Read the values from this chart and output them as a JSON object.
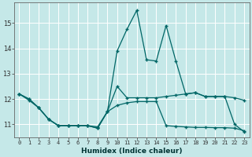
{
  "xlabel": "Humidex (Indice chaleur)",
  "bg_color": "#c5e8e8",
  "grid_color": "#ffffff",
  "line_color": "#006666",
  "xlim": [
    -0.5,
    23.5
  ],
  "ylim": [
    10.5,
    15.8
  ],
  "yticks": [
    11,
    12,
    13,
    14,
    15
  ],
  "xticks": [
    0,
    1,
    2,
    3,
    4,
    5,
    6,
    7,
    8,
    9,
    10,
    11,
    12,
    13,
    14,
    15,
    16,
    17,
    18,
    19,
    20,
    21,
    22,
    23
  ],
  "line1_x": [
    0,
    1,
    2,
    3,
    4,
    5,
    6,
    7,
    8,
    9,
    10,
    11,
    12,
    13,
    14,
    15,
    16,
    17,
    18,
    19,
    20,
    21,
    22,
    23
  ],
  "line1_y": [
    12.2,
    11.95,
    11.65,
    11.2,
    10.95,
    10.95,
    10.95,
    10.95,
    10.85,
    11.5,
    13.9,
    14.75,
    15.5,
    13.55,
    13.5,
    14.9,
    13.5,
    12.2,
    12.25,
    12.1,
    12.1,
    12.1,
    11.0,
    10.7
  ],
  "line2_x": [
    0,
    1,
    2,
    3,
    4,
    5,
    6,
    7,
    8,
    9,
    10,
    11,
    12,
    13,
    14,
    15,
    16,
    17,
    18,
    19,
    20,
    21,
    22,
    23
  ],
  "line2_y": [
    12.2,
    12.0,
    11.65,
    11.2,
    10.95,
    10.95,
    10.95,
    10.95,
    10.9,
    11.5,
    12.5,
    12.05,
    12.05,
    12.05,
    12.05,
    12.1,
    12.15,
    12.2,
    12.25,
    12.1,
    12.1,
    12.1,
    12.05,
    11.95
  ],
  "line3_x": [
    0,
    1,
    2,
    3,
    4,
    5,
    6,
    7,
    8,
    9,
    10,
    11,
    12,
    13,
    14,
    15,
    16,
    17,
    18,
    19,
    20,
    21,
    22,
    23
  ],
  "line3_y": [
    12.2,
    12.0,
    11.65,
    11.2,
    10.95,
    10.95,
    10.95,
    10.95,
    10.85,
    11.5,
    11.75,
    11.85,
    11.9,
    11.9,
    11.9,
    10.95,
    10.92,
    10.9,
    10.88,
    10.88,
    10.87,
    10.87,
    10.85,
    10.75
  ]
}
